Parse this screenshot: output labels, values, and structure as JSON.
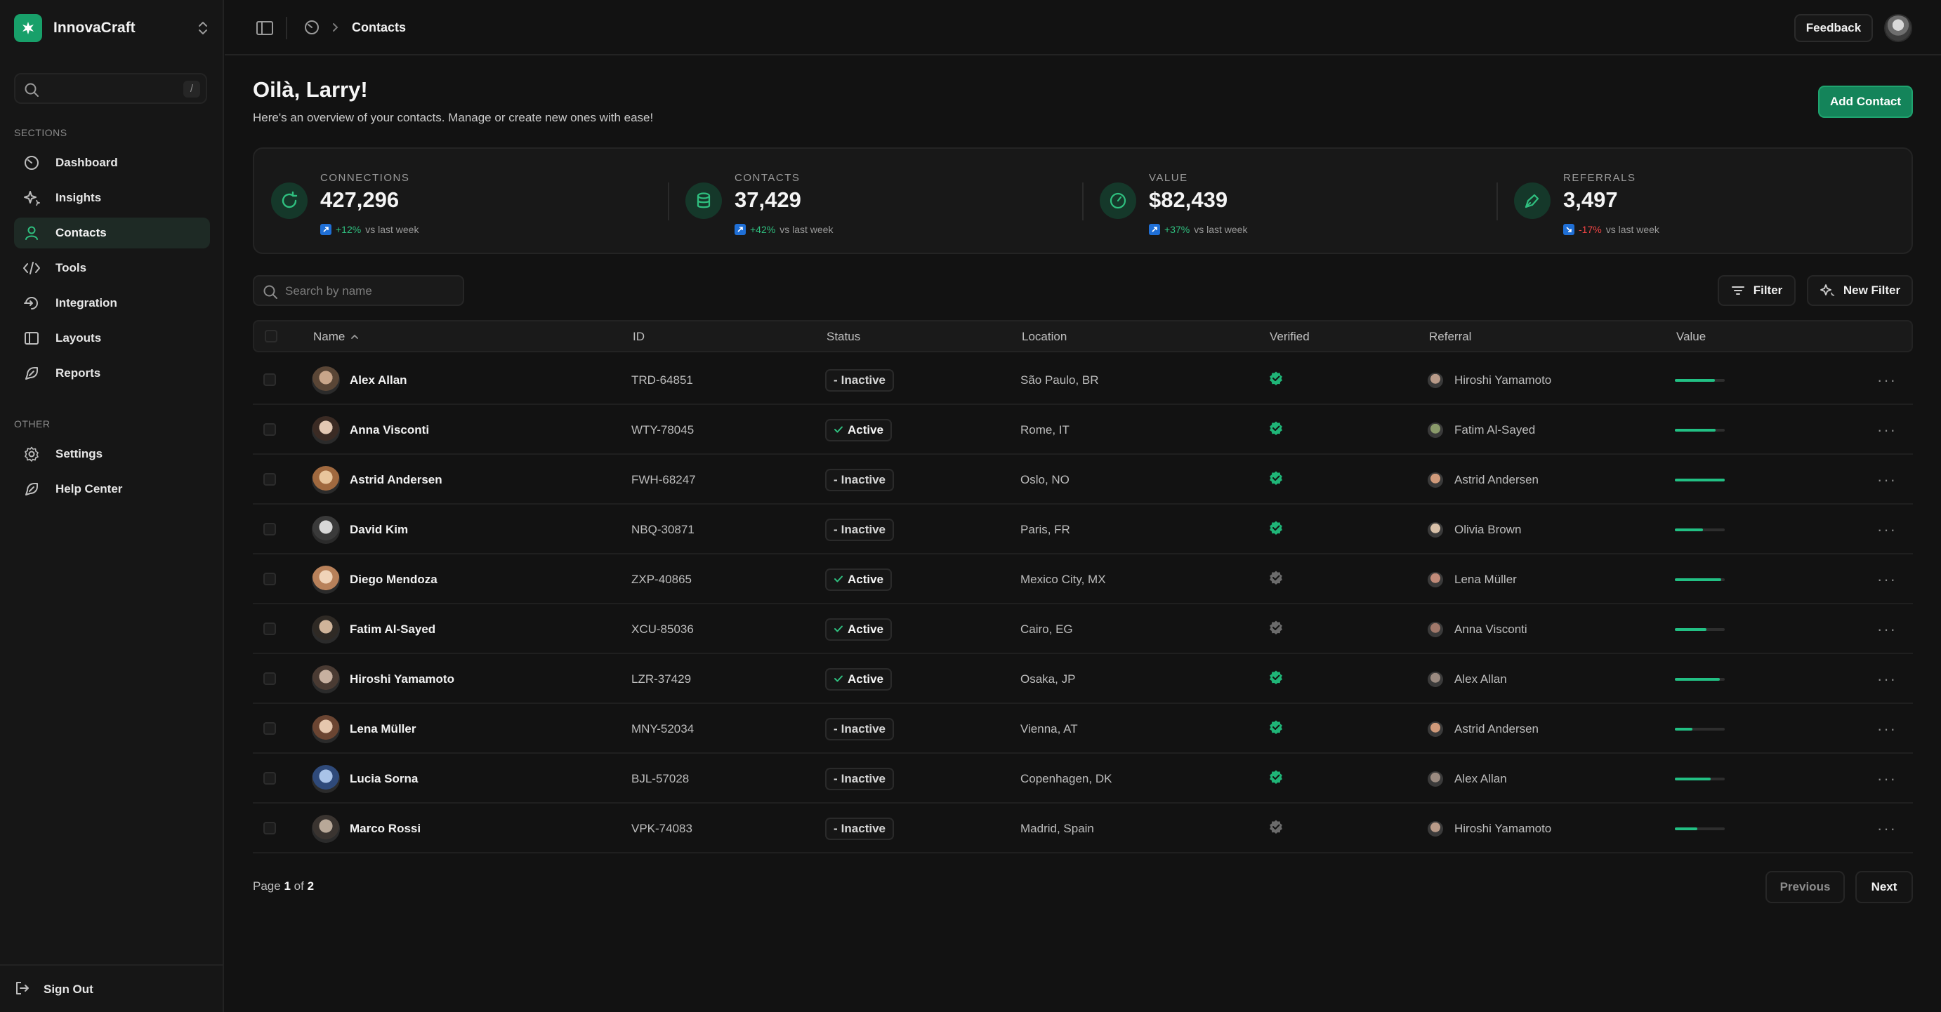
{
  "app": {
    "name": "InnovaCraft"
  },
  "sidebar": {
    "search_kbd": "/",
    "sections_label": "SECTIONS",
    "other_label": "OTHER",
    "items": [
      {
        "label": "Dashboard",
        "icon": "dashboard-icon"
      },
      {
        "label": "Insights",
        "icon": "sparkle-icon"
      },
      {
        "label": "Contacts",
        "icon": "user-icon",
        "active": true
      },
      {
        "label": "Tools",
        "icon": "code-icon"
      },
      {
        "label": "Integration",
        "icon": "integration-icon"
      },
      {
        "label": "Layouts",
        "icon": "layout-icon"
      },
      {
        "label": "Reports",
        "icon": "reports-icon"
      }
    ],
    "other_items": [
      {
        "label": "Settings",
        "icon": "gear-icon"
      },
      {
        "label": "Help Center",
        "icon": "help-icon"
      }
    ],
    "sign_out": "Sign Out"
  },
  "topbar": {
    "breadcrumb": "Contacts",
    "feedback_label": "Feedback"
  },
  "header": {
    "greeting": "Oilà, Larry!",
    "subtitle": "Here's an overview of your contacts. Manage or create new ones with ease!",
    "add_contact_label": "Add Contact"
  },
  "stats": [
    {
      "label": "CONNECTIONS",
      "value": "427,296",
      "delta": "+12%",
      "delta_suffix": "vs last week",
      "trend": "up"
    },
    {
      "label": "CONTACTS",
      "value": "37,429",
      "delta": "+42%",
      "delta_suffix": "vs last week",
      "trend": "up"
    },
    {
      "label": "VALUE",
      "value": "$82,439",
      "delta": "+37%",
      "delta_suffix": "vs last week",
      "trend": "up"
    },
    {
      "label": "REFERRALS",
      "value": "3,497",
      "delta": "-17%",
      "delta_suffix": "vs last week",
      "trend": "down"
    }
  ],
  "toolbar": {
    "search_placeholder": "Search by name",
    "filter_label": "Filter",
    "new_filter_label": "New Filter"
  },
  "table": {
    "columns": [
      "Name",
      "ID",
      "Status",
      "Location",
      "Verified",
      "Referral",
      "Value"
    ],
    "rows": [
      {
        "name": "Alex Allan",
        "id": "TRD-64851",
        "status": "Inactive",
        "location": "São Paulo, BR",
        "verified": true,
        "referral": "Hiroshi Yamamoto",
        "value": 0.8
      },
      {
        "name": "Anna Visconti",
        "id": "WTY-78045",
        "status": "Active",
        "location": "Rome, IT",
        "verified": true,
        "referral": "Fatim Al-Sayed",
        "value": 0.82
      },
      {
        "name": "Astrid Andersen",
        "id": "FWH-68247",
        "status": "Inactive",
        "location": "Oslo, NO",
        "verified": true,
        "referral": "Astrid Andersen",
        "value": 1.0
      },
      {
        "name": "David Kim",
        "id": "NBQ-30871",
        "status": "Inactive",
        "location": "Paris, FR",
        "verified": true,
        "referral": "Olivia Brown",
        "value": 0.57
      },
      {
        "name": "Diego Mendoza",
        "id": "ZXP-40865",
        "status": "Active",
        "location": "Mexico City, MX",
        "verified": false,
        "referral": "Lena Müller",
        "value": 0.93
      },
      {
        "name": "Fatim Al-Sayed",
        "id": "XCU-85036",
        "status": "Active",
        "location": "Cairo, EG",
        "verified": false,
        "referral": "Anna Visconti",
        "value": 0.64
      },
      {
        "name": "Hiroshi Yamamoto",
        "id": "LZR-37429",
        "status": "Active",
        "location": "Osaka, JP",
        "verified": true,
        "referral": "Alex Allan",
        "value": 0.9
      },
      {
        "name": "Lena Müller",
        "id": "MNY-52034",
        "status": "Inactive",
        "location": "Vienna, AT",
        "verified": true,
        "referral": "Astrid Andersen",
        "value": 0.35
      },
      {
        "name": "Lucia Sorna",
        "id": "BJL-57028",
        "status": "Inactive",
        "location": "Copenhagen, DK",
        "verified": true,
        "referral": "Alex Allan",
        "value": 0.72
      },
      {
        "name": "Marco Rossi",
        "id": "VPK-74083",
        "status": "Inactive",
        "location": "Madrid, Spain",
        "verified": false,
        "referral": "Hiroshi Yamamoto",
        "value": 0.45
      }
    ]
  },
  "pagination": {
    "prefix": "Page",
    "current": "1",
    "of": "of",
    "total": "2",
    "previous_label": "Previous",
    "next_label": "Next"
  },
  "colors": {
    "accent": "#14845a",
    "positive": "#2fbf7f",
    "negative": "#ef4444",
    "verified": "#1fb577",
    "unverified": "#6b6b6b"
  }
}
